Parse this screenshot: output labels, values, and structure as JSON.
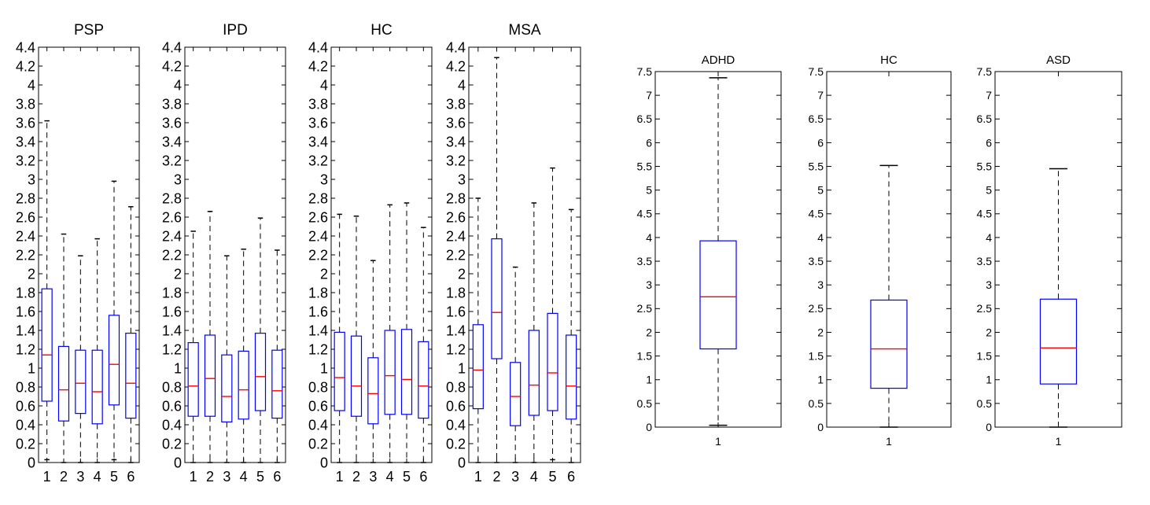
{
  "colors": {
    "box": "#0000ff",
    "median": "#ff0000",
    "whisker": "#000000",
    "axis": "#000000"
  },
  "chart_data": [
    {
      "type": "boxplot",
      "title": "PSP",
      "categories": [
        "1",
        "2",
        "3",
        "4",
        "5",
        "6"
      ],
      "ylim": [
        0,
        4.4
      ],
      "yticks": [
        "0",
        "0.2",
        "0.4",
        "0.6",
        "0.8",
        "1",
        "1.2",
        "1.4",
        "1.6",
        "1.8",
        "2",
        "2.2",
        "2.4",
        "2.6",
        "2.8",
        "3",
        "3.2",
        "3.4",
        "3.6",
        "3.8",
        "4",
        "4.2",
        "4.4"
      ],
      "boxes": [
        {
          "min": 0.03,
          "q1": 0.65,
          "median": 1.14,
          "q3": 1.84,
          "max": 3.62
        },
        {
          "min": 0.0,
          "q1": 0.44,
          "median": 0.77,
          "q3": 1.23,
          "max": 2.42
        },
        {
          "min": 0.0,
          "q1": 0.52,
          "median": 0.84,
          "q3": 1.19,
          "max": 2.19
        },
        {
          "min": 0.0,
          "q1": 0.41,
          "median": 0.75,
          "q3": 1.19,
          "max": 2.37
        },
        {
          "min": 0.03,
          "q1": 0.61,
          "median": 1.04,
          "q3": 1.56,
          "max": 2.98
        },
        {
          "min": 0.0,
          "q1": 0.47,
          "median": 0.84,
          "q3": 1.37,
          "max": 2.71
        }
      ]
    },
    {
      "type": "boxplot",
      "title": "IPD",
      "categories": [
        "1",
        "2",
        "3",
        "4",
        "5",
        "6"
      ],
      "ylim": [
        0,
        4.4
      ],
      "yticks": [
        "0",
        "0.2",
        "0.4",
        "0.6",
        "0.8",
        "1",
        "1.2",
        "1.4",
        "1.6",
        "1.8",
        "2",
        "2.2",
        "2.4",
        "2.6",
        "2.8",
        "3",
        "3.2",
        "3.4",
        "3.6",
        "3.8",
        "4",
        "4.2",
        "4.4"
      ],
      "boxes": [
        {
          "min": 0.0,
          "q1": 0.49,
          "median": 0.81,
          "q3": 1.27,
          "max": 2.45
        },
        {
          "min": 0.0,
          "q1": 0.49,
          "median": 0.89,
          "q3": 1.35,
          "max": 2.66
        },
        {
          "min": 0.0,
          "q1": 0.43,
          "median": 0.7,
          "q3": 1.14,
          "max": 2.19
        },
        {
          "min": 0.0,
          "q1": 0.46,
          "median": 0.77,
          "q3": 1.18,
          "max": 2.26
        },
        {
          "min": 0.0,
          "q1": 0.55,
          "median": 0.91,
          "q3": 1.37,
          "max": 2.59
        },
        {
          "min": 0.0,
          "q1": 0.47,
          "median": 0.76,
          "q3": 1.19,
          "max": 2.25
        }
      ]
    },
    {
      "type": "boxplot",
      "title": "HC",
      "categories": [
        "1",
        "2",
        "3",
        "4",
        "5",
        "6"
      ],
      "ylim": [
        0,
        4.4
      ],
      "yticks": [
        "0",
        "0.2",
        "0.4",
        "0.6",
        "0.8",
        "1",
        "1.2",
        "1.4",
        "1.6",
        "1.8",
        "2",
        "2.2",
        "2.4",
        "2.6",
        "2.8",
        "3",
        "3.2",
        "3.4",
        "3.6",
        "3.8",
        "4",
        "4.2",
        "4.4"
      ],
      "boxes": [
        {
          "min": 0.0,
          "q1": 0.55,
          "median": 0.9,
          "q3": 1.38,
          "max": 2.63
        },
        {
          "min": 0.0,
          "q1": 0.49,
          "median": 0.81,
          "q3": 1.34,
          "max": 2.61
        },
        {
          "min": 0.0,
          "q1": 0.41,
          "median": 0.73,
          "q3": 1.11,
          "max": 2.14
        },
        {
          "min": 0.0,
          "q1": 0.51,
          "median": 0.92,
          "q3": 1.4,
          "max": 2.73
        },
        {
          "min": 0.0,
          "q1": 0.51,
          "median": 0.88,
          "q3": 1.41,
          "max": 2.75
        },
        {
          "min": 0.0,
          "q1": 0.47,
          "median": 0.81,
          "q3": 1.28,
          "max": 2.49
        }
      ]
    },
    {
      "type": "boxplot",
      "title": "MSA",
      "categories": [
        "1",
        "2",
        "3",
        "4",
        "5",
        "6"
      ],
      "ylim": [
        0,
        4.4
      ],
      "yticks": [
        "0",
        "0.2",
        "0.4",
        "0.6",
        "0.8",
        "1",
        "1.2",
        "1.4",
        "1.6",
        "1.8",
        "2",
        "2.2",
        "2.4",
        "2.6",
        "2.8",
        "3",
        "3.2",
        "3.4",
        "3.6",
        "3.8",
        "4",
        "4.2",
        "4.4"
      ],
      "boxes": [
        {
          "min": 0.0,
          "q1": 0.57,
          "median": 0.98,
          "q3": 1.46,
          "max": 2.8
        },
        {
          "min": 0.0,
          "q1": 1.1,
          "median": 1.59,
          "q3": 2.37,
          "max": 4.29
        },
        {
          "min": 0.0,
          "q1": 0.39,
          "median": 0.7,
          "q3": 1.06,
          "max": 2.07
        },
        {
          "min": 0.0,
          "q1": 0.5,
          "median": 0.82,
          "q3": 1.4,
          "max": 2.75
        },
        {
          "min": 0.03,
          "q1": 0.55,
          "median": 0.95,
          "q3": 1.58,
          "max": 3.12
        },
        {
          "min": 0.0,
          "q1": 0.46,
          "median": 0.81,
          "q3": 1.35,
          "max": 2.68
        }
      ]
    },
    {
      "type": "boxplot",
      "title": "ADHD",
      "categories": [
        "1"
      ],
      "ylim": [
        0,
        7.5
      ],
      "yticks": [
        "0",
        "0.5",
        "1",
        "1.5",
        "2",
        "2.5",
        "3",
        "3.5",
        "4",
        "4.5",
        "5",
        "5.5",
        "6",
        "6.5",
        "7",
        "7.5"
      ],
      "boxes": [
        {
          "min": 0.04,
          "q1": 1.65,
          "median": 2.75,
          "q3": 3.93,
          "max": 7.37
        }
      ]
    },
    {
      "type": "boxplot",
      "title": "HC",
      "categories": [
        "1"
      ],
      "ylim": [
        0,
        7.5
      ],
      "yticks": [
        "0",
        "0.5",
        "1",
        "1.5",
        "2",
        "2.5",
        "3",
        "3.5",
        "4",
        "4.5",
        "5",
        "5.5",
        "6",
        "6.5",
        "7",
        "7.5"
      ],
      "boxes": [
        {
          "min": 0.0,
          "q1": 0.82,
          "median": 1.65,
          "q3": 2.68,
          "max": 5.52
        }
      ]
    },
    {
      "type": "boxplot",
      "title": "ASD",
      "categories": [
        "1"
      ],
      "ylim": [
        0,
        7.5
      ],
      "yticks": [
        "0",
        "0.5",
        "1",
        "1.5",
        "2",
        "2.5",
        "3",
        "3.5",
        "4",
        "4.5",
        "5",
        "5.5",
        "6",
        "6.5",
        "7",
        "7.5"
      ],
      "boxes": [
        {
          "min": 0.0,
          "q1": 0.91,
          "median": 1.67,
          "q3": 2.7,
          "max": 5.45
        }
      ]
    }
  ]
}
